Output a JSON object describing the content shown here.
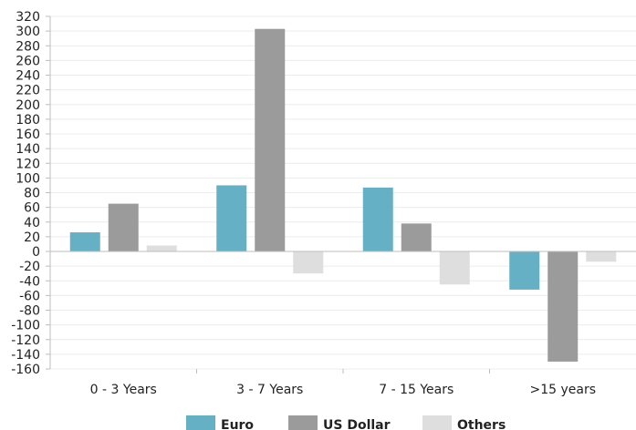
{
  "chart_data": {
    "type": "bar",
    "categories": [
      "0 - 3 Years",
      "3 - 7 Years",
      "7 - 15 Years",
      ">15 years"
    ],
    "series": [
      {
        "name": "Euro",
        "color": "#66b0c6",
        "values": [
          26,
          90,
          87,
          -52
        ]
      },
      {
        "name": "US Dollar",
        "color": "#9b9b9b",
        "values": [
          65,
          303,
          38,
          -150
        ]
      },
      {
        "name": "Others",
        "color": "#dedede",
        "values": [
          8,
          -30,
          -45,
          -14
        ]
      }
    ],
    "ylim": [
      -160,
      320
    ],
    "ytick_step": 20,
    "ytick_labels": [
      "320",
      "300",
      "280",
      "260",
      "240",
      "220",
      "200",
      "180",
      "160",
      "140",
      "120",
      "100",
      "80",
      "60",
      "40",
      "20",
      "0",
      "-20",
      "-40",
      "-60",
      "-80",
      "-100",
      "-120",
      "-140",
      "-160"
    ],
    "grid": true,
    "legend_position": "bottom"
  }
}
